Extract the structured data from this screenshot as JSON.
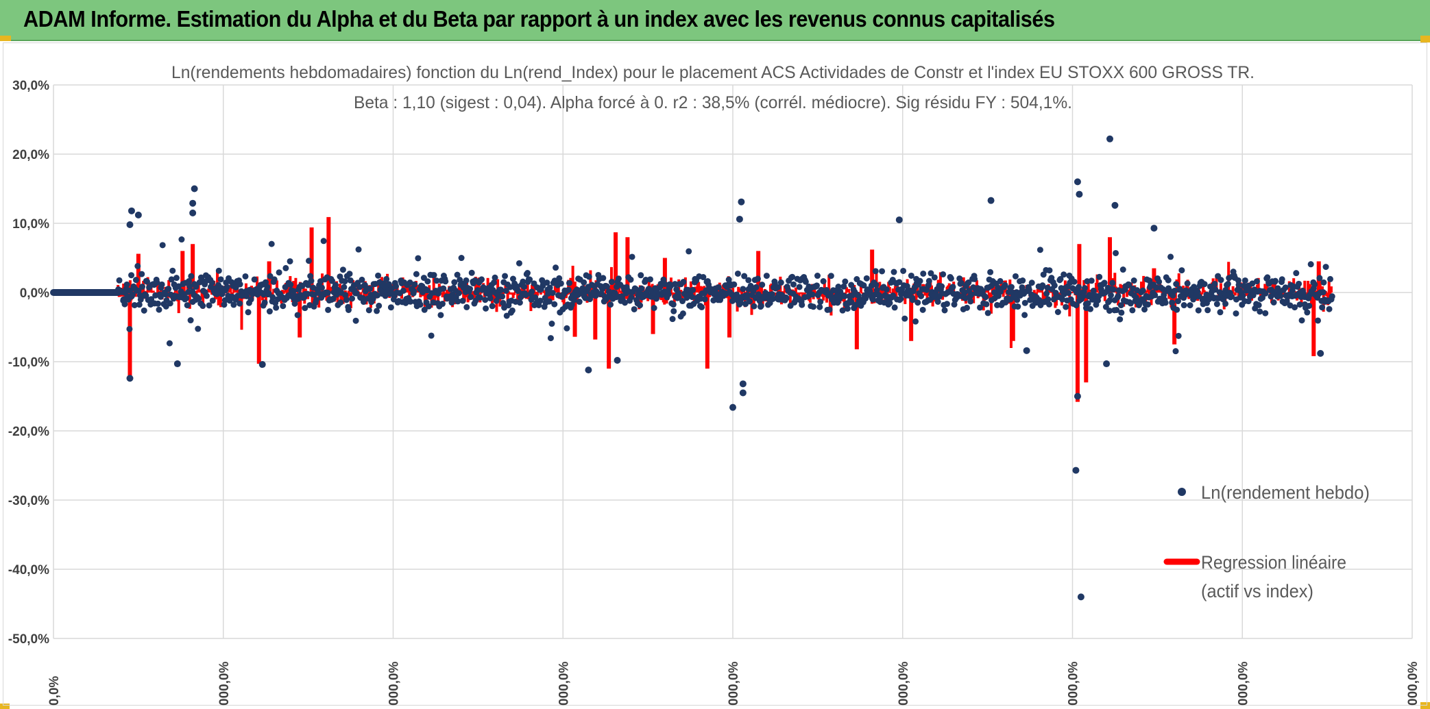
{
  "banner": {
    "title": "ADAM Informe. Estimation du Alpha et du Beta par rapport à un index avec les revenus connus capitalisés"
  },
  "colors": {
    "banner_bg": "#7dc67e",
    "points": "#203864",
    "regression": "#ff0000",
    "grid": "#d9d9d9",
    "handle": "#e8b620"
  },
  "chart_data": {
    "type": "scatter",
    "title_line1": "Ln(rendements hebdomadaires) fonction du Ln(rend_Index) pour le placement ACS Actividades de Constr et l'index EU STOXX 600 GROSS TR.",
    "title_line2": "Beta : 1,10 (sigest : 0,04). Alpha forcé à 0. r2 : 38,5% (corrél. médiocre). Sig résidu FY : 504,1%.",
    "y_ticks": [
      "30,0%",
      "20,0%",
      "10,0%",
      "0,0%",
      "-10,0%",
      "-20,0%",
      "-30,0%",
      "-40,0%",
      "-50,0%"
    ],
    "y_tick_values": [
      30,
      20,
      10,
      0,
      -10,
      -20,
      -30,
      -40,
      -50
    ],
    "ylim": [
      -50,
      30
    ],
    "x_ticks": [
      "0,0%",
      "000,0%",
      "000,0%",
      "000,0%",
      "000,0%",
      "000,0%",
      "000,0%",
      "000,0%",
      "000,0%"
    ],
    "xlim": [
      0,
      8
    ],
    "grid": true,
    "legend_position": "right",
    "series": [
      {
        "name": "Ln(rendement hebdo)",
        "kind": "points",
        "outliers": [
          [
            0.46,
            11.8
          ],
          [
            0.5,
            11.2
          ],
          [
            0.45,
            9.8
          ],
          [
            0.83,
            15.0
          ],
          [
            0.82,
            12.9
          ],
          [
            0.82,
            11.5
          ],
          [
            0.45,
            -12.4
          ],
          [
            0.73,
            -10.3
          ],
          [
            1.23,
            -10.4
          ],
          [
            3.15,
            -11.2
          ],
          [
            3.32,
            -9.8
          ],
          [
            4.05,
            13.1
          ],
          [
            4.04,
            10.6
          ],
          [
            4.0,
            -16.6
          ],
          [
            4.06,
            -14.5
          ],
          [
            4.06,
            -13.2
          ],
          [
            4.98,
            10.5
          ],
          [
            5.52,
            13.3
          ],
          [
            5.73,
            -8.4
          ],
          [
            6.03,
            16.0
          ],
          [
            6.04,
            14.2
          ],
          [
            6.22,
            22.2
          ],
          [
            6.25,
            12.6
          ],
          [
            6.02,
            -25.7
          ],
          [
            6.05,
            -44.0
          ],
          [
            6.03,
            -15.0
          ],
          [
            6.2,
            -10.3
          ],
          [
            6.48,
            9.3
          ],
          [
            7.46,
            -8.8
          ]
        ],
        "flat_segment_x": [
          0,
          0.38
        ]
      },
      {
        "name": "Regression linéaire",
        "name_line2": "(actif vs index)",
        "kind": "bars",
        "spikes": [
          [
            0.45,
            -12.6
          ],
          [
            0.5,
            5.6
          ],
          [
            0.82,
            7.0
          ],
          [
            0.76,
            6.0
          ],
          [
            1.21,
            -10.3
          ],
          [
            1.27,
            4.5
          ],
          [
            1.52,
            9.4
          ],
          [
            1.62,
            10.9
          ],
          [
            1.45,
            -6.5
          ],
          [
            3.07,
            -6.4
          ],
          [
            3.19,
            -6.8
          ],
          [
            3.27,
            -11.0
          ],
          [
            3.31,
            8.7
          ],
          [
            3.38,
            8.0
          ],
          [
            3.6,
            5.0
          ],
          [
            3.53,
            -6.0
          ],
          [
            3.85,
            -11.0
          ],
          [
            4.15,
            6.0
          ],
          [
            3.98,
            -6.5
          ],
          [
            4.73,
            -8.2
          ],
          [
            4.82,
            6.2
          ],
          [
            5.05,
            -7.0
          ],
          [
            5.65,
            -7.0
          ],
          [
            6.03,
            -15.8
          ],
          [
            6.04,
            7.0
          ],
          [
            6.22,
            8.0
          ],
          [
            6.08,
            -13.0
          ],
          [
            6.48,
            3.5
          ],
          [
            6.6,
            -7.5
          ],
          [
            7.42,
            -9.2
          ],
          [
            7.45,
            4.5
          ]
        ]
      }
    ]
  }
}
